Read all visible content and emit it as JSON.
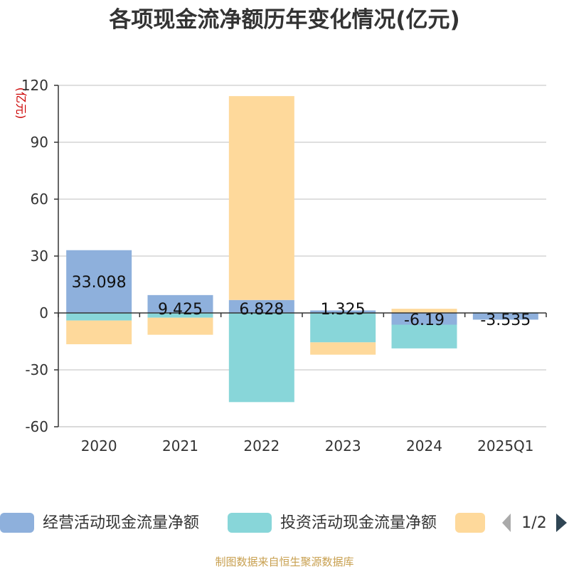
{
  "chart_data": {
    "type": "bar",
    "stacked": true,
    "title": "各项现金流净额历年变化情况(亿元)",
    "y_unit": "(亿元)",
    "ylim": [
      -60,
      120
    ],
    "yticks": [
      120,
      90,
      60,
      30,
      0,
      -30,
      -60
    ],
    "grid": true,
    "categories": [
      "2020",
      "2021",
      "2022",
      "2023",
      "2024",
      "2025Q1"
    ],
    "series": [
      {
        "name": "经营活动现金流量净额",
        "color": "#8eb0dc",
        "values": [
          33.098,
          9.425,
          6.828,
          1.325,
          -6.19,
          -3.535
        ],
        "labels": [
          "33.098",
          "9.425",
          "6.828",
          "1.325",
          "-6.19",
          "-3.535"
        ]
      },
      {
        "name": "投资活动现金流量净额",
        "color": "#88d6d9",
        "values": [
          -4,
          -2.5,
          -47,
          -15.5,
          -12.5,
          0.3
        ]
      },
      {
        "name": "",
        "color": "#fed99b",
        "values": [
          -12.5,
          -9,
          107.5,
          -6.5,
          2.2,
          0
        ]
      }
    ],
    "legend": {
      "position": "bottom",
      "page": "1/2"
    }
  },
  "source": "制图数据来自恒生聚源数据库"
}
